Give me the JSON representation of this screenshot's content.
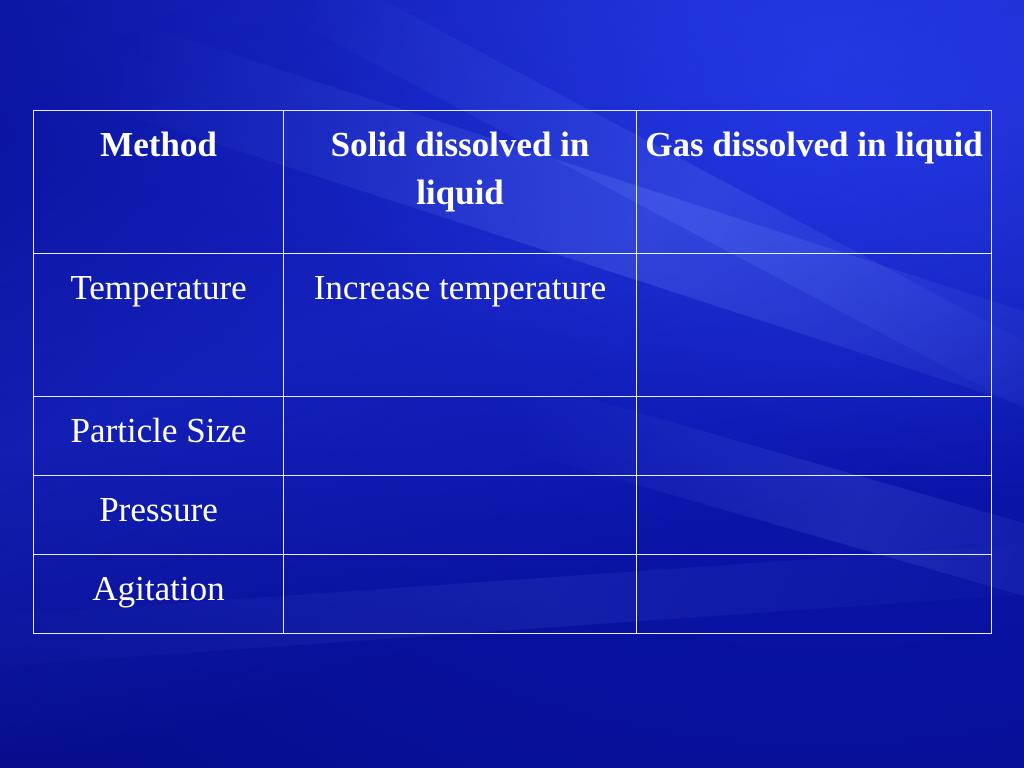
{
  "table": {
    "headers": [
      "Method",
      "Solid dissolved in liquid",
      "Gas dissolved in liquid"
    ],
    "rows": [
      [
        "Temperature",
        "Increase temperature",
        ""
      ],
      [
        "Particle Size",
        "",
        ""
      ],
      [
        "Pressure",
        "",
        ""
      ],
      [
        "Agitation",
        "",
        ""
      ]
    ]
  },
  "colors": {
    "background": "#0a14a8",
    "text": "#ffffff",
    "border": "#e8ecff"
  }
}
